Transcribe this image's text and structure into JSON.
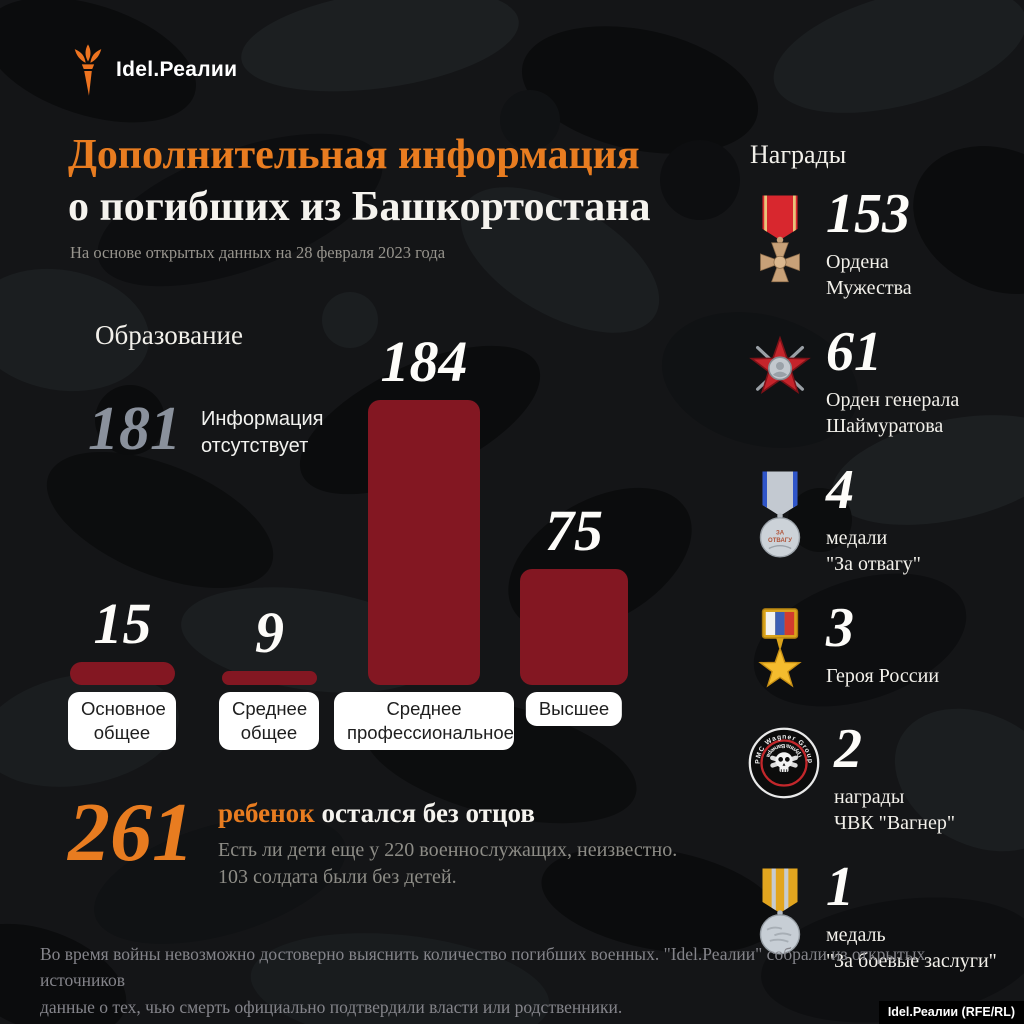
{
  "brand": {
    "logo_text": "Idel.Реалии",
    "credit": "Idel.Реалии (RFE/RL)"
  },
  "header": {
    "title_line1": "Дополнительная информация",
    "title_line2": "о погибших из Башкортостана",
    "subtitle": "На основе открытых данных на 28 февраля 2023 года"
  },
  "education": {
    "heading": "Образование",
    "missing_value": "181",
    "missing_label": "Информация\nотсутствует"
  },
  "chart_data": {
    "type": "bar",
    "title": "Образование",
    "categories": [
      "Основное общее",
      "Среднее общее",
      "Среднее профессиональное",
      "Высшее"
    ],
    "values": [
      15,
      9,
      184,
      75
    ],
    "annotation": {
      "value": 181,
      "label": "Информация отсутствует"
    },
    "bar_color": "#831722",
    "value_labels_position": "above",
    "ylim": [
      0,
      184
    ],
    "grid": false
  },
  "awards": {
    "heading": "Награды",
    "items": [
      {
        "value": "153",
        "label": "Ордена\nМужества",
        "icon": "order-of-courage-medal"
      },
      {
        "value": "61",
        "label": "Орден генерала\nШаймуратова",
        "icon": "shaymuratov-order-medal"
      },
      {
        "value": "4",
        "label": "медали\n\"За отвагу\"",
        "icon": "za-otvagu-medal"
      },
      {
        "value": "3",
        "label": "Героя России",
        "icon": "hero-of-russia-star"
      },
      {
        "value": "2",
        "label": "награды\nЧВК \"Вагнер\"",
        "icon": "wagner-group-patch"
      },
      {
        "value": "1",
        "label": "медаль\n\"За боевые заслуги\"",
        "icon": "za-boevye-zaslugi-medal"
      }
    ]
  },
  "children": {
    "value": "261",
    "highlight": "ребенок",
    "rest": " остался без отцов",
    "note": "Есть ли дети еще у 220 военнослужащих, неизвестно.\n103 солдата были без детей."
  },
  "footer": {
    "text": "Во время войны невозможно достоверно выяснить количество погибших военных. \"Idel.Реалии\" собрали из открытых источников\nданные о тех, чью смерть официально подтвердили власти или родственники."
  },
  "colors": {
    "accent_orange": "#e87c20",
    "bar_red": "#831722",
    "muted_gray": "#8a919c",
    "background": "#16181a"
  }
}
